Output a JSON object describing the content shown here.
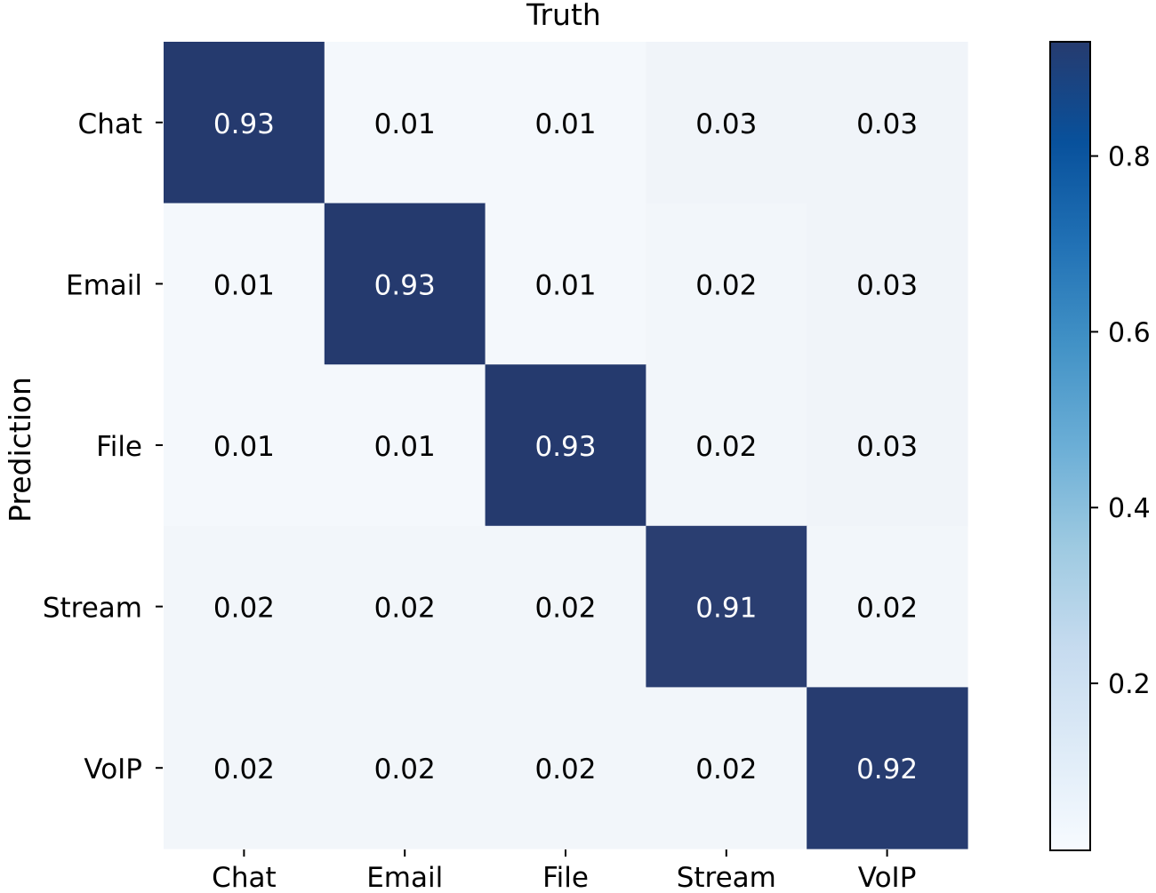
{
  "chart_data": {
    "type": "heatmap",
    "title": "Truth",
    "xlabel": "",
    "ylabel": "Prediction",
    "x_categories": [
      "Chat",
      "Email",
      "File",
      "Stream",
      "VoIP"
    ],
    "y_categories": [
      "Chat",
      "Email",
      "File",
      "Stream",
      "VoIP"
    ],
    "values": [
      [
        0.93,
        0.01,
        0.01,
        0.03,
        0.03
      ],
      [
        0.01,
        0.93,
        0.01,
        0.02,
        0.03
      ],
      [
        0.01,
        0.01,
        0.93,
        0.02,
        0.03
      ],
      [
        0.02,
        0.02,
        0.02,
        0.91,
        0.02
      ],
      [
        0.02,
        0.02,
        0.02,
        0.02,
        0.92
      ]
    ],
    "value_labels": [
      [
        "0.93",
        "0.01",
        "0.01",
        "0.03",
        "0.03"
      ],
      [
        "0.01",
        "0.93",
        "0.01",
        "0.02",
        "0.03"
      ],
      [
        "0.01",
        "0.01",
        "0.93",
        "0.02",
        "0.03"
      ],
      [
        "0.02",
        "0.02",
        "0.02",
        "0.91",
        "0.02"
      ],
      [
        "0.02",
        "0.02",
        "0.02",
        "0.02",
        "0.92"
      ]
    ],
    "colorbar": {
      "colormap": "Blues",
      "range": [
        0.01,
        0.93
      ],
      "ticks": [
        0.2,
        0.4,
        0.6,
        0.8
      ],
      "tick_labels": [
        "0.2",
        "0.4",
        "0.6",
        "0.8"
      ]
    },
    "colors": {
      "high": "#253a6e",
      "low": "#f4f8fc",
      "text_dark": "#000000",
      "text_light": "#ffffff"
    }
  }
}
